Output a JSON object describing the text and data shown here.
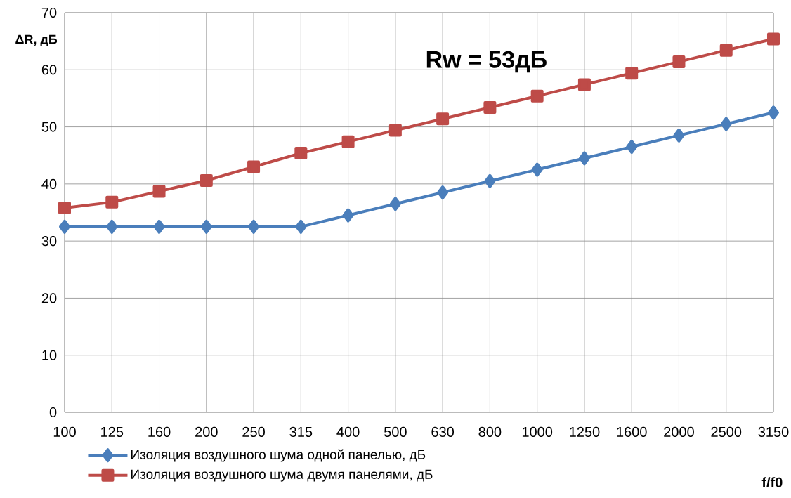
{
  "chart_data": {
    "type": "line",
    "xlabel": "f/f0",
    "ylabel": "ΔR, дБ",
    "annotations": [
      "Rw = 53дБ"
    ],
    "categories": [
      "100",
      "125",
      "160",
      "200",
      "250",
      "315",
      "400",
      "500",
      "630",
      "800",
      "1000",
      "1250",
      "1600",
      "2000",
      "2500",
      "3150"
    ],
    "series": [
      {
        "name": "Изоляция воздушного шума одной панелью, дБ",
        "color": "#4a7ebb",
        "marker": "diamond",
        "values": [
          32.5,
          32.5,
          32.5,
          32.5,
          32.5,
          32.5,
          34.5,
          36.5,
          38.5,
          40.5,
          42.5,
          44.5,
          46.5,
          48.5,
          50.5,
          52.5
        ]
      },
      {
        "name": "Изоляция воздушного шума двумя панелями, дБ",
        "color": "#be4b48",
        "marker": "square",
        "values": [
          35.8,
          36.8,
          38.7,
          40.6,
          43.0,
          45.4,
          47.4,
          49.4,
          51.4,
          53.4,
          55.4,
          57.4,
          59.4,
          61.4,
          63.4,
          65.4
        ]
      }
    ],
    "ylim": [
      0,
      70
    ],
    "yticks": [
      0,
      10,
      20,
      30,
      40,
      50,
      60,
      70
    ],
    "grid": true,
    "legend": "bottom",
    "line_style": "solid"
  }
}
